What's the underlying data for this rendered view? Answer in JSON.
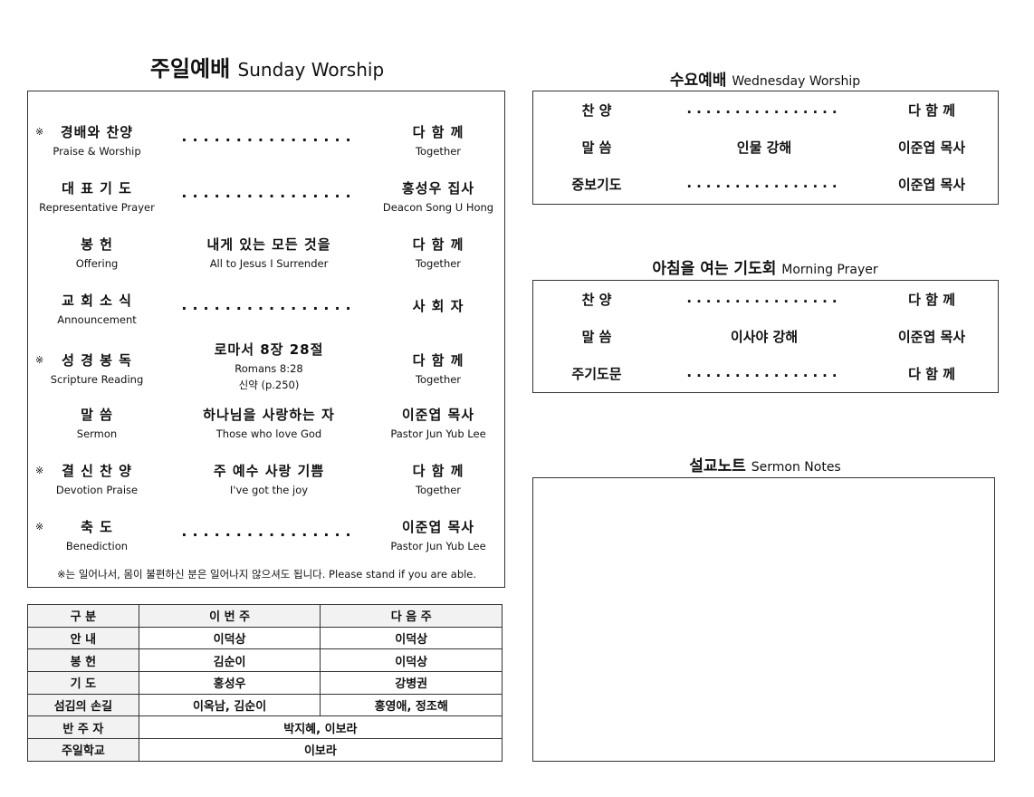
{
  "sunday": {
    "title_ko": "주일예배",
    "title_en": "Sunday Worship",
    "items": [
      {
        "star": true,
        "ko": "경배와 찬양",
        "en": "Praise & Worship",
        "mid_ko": "................",
        "mid_en": "",
        "mid_extra": "",
        "ko_r": "다 함 께",
        "en_r": "Together"
      },
      {
        "star": false,
        "ko": "대 표 기 도",
        "en": "Representative Prayer",
        "mid_ko": "................",
        "mid_en": "",
        "mid_extra": "",
        "ko_r": "홍성우 집사",
        "en_r": "Deacon Song U Hong"
      },
      {
        "star": false,
        "ko": "봉   헌",
        "en": "Offering",
        "mid_ko": "내게 있는 모든 것을",
        "mid_en": "All to Jesus I Surrender",
        "mid_extra": "",
        "ko_r": "다 함 께",
        "en_r": "Together"
      },
      {
        "star": false,
        "ko": "교 회 소 식",
        "en": "Announcement",
        "mid_ko": "................",
        "mid_en": "",
        "mid_extra": "",
        "ko_r": "사 회 자",
        "en_r": ""
      },
      {
        "star": true,
        "ko": "성 경 봉 독",
        "en": "Scripture Reading",
        "mid_ko": "로마서 8장 28절",
        "mid_en": "Romans 8:28",
        "mid_extra": "신약 (p.250)",
        "ko_r": "다 함 께",
        "en_r": "Together"
      },
      {
        "star": false,
        "ko": "말   씀",
        "en": "Sermon",
        "mid_ko": "하나님을 사랑하는 자",
        "mid_en": "Those who love God",
        "mid_extra": "",
        "ko_r": "이준엽 목사",
        "en_r": "Pastor Jun Yub Lee"
      },
      {
        "star": true,
        "ko": "결 신 찬 양",
        "en": "Devotion Praise",
        "mid_ko": "주 예수 사랑 기쁨",
        "mid_en": "I've got the joy",
        "mid_extra": "",
        "ko_r": "다 함 께",
        "en_r": "Together"
      },
      {
        "star": true,
        "ko": "축   도",
        "en": "Benediction",
        "mid_ko": "................",
        "mid_en": "",
        "mid_extra": "",
        "ko_r": "이준엽 목사",
        "en_r": "Pastor Jun Yub Lee"
      }
    ],
    "star_symbol": "※",
    "note": "※는 일어나서, 몸이 불편하신 분은 일어나지 않으셔도 됩니다. Please stand if you are able."
  },
  "duty_table": {
    "headers": [
      "구   분",
      "이 번 주",
      "다 음 주"
    ],
    "rows": [
      [
        "안    내",
        "이덕상",
        "이덕상"
      ],
      [
        "봉    헌",
        "김순이",
        "이덕상"
      ],
      [
        "기    도",
        "홍성우",
        "강병권"
      ],
      [
        "섬김의 손길",
        "이옥남, 김순이",
        "홍영애, 정조해"
      ]
    ],
    "merged_rows": [
      [
        "반 주 자",
        "박지혜, 이보라"
      ],
      [
        "주일학교",
        "이보라"
      ]
    ]
  },
  "wednesday": {
    "title_ko": "수요예배",
    "title_en": "Wednesday Worship",
    "rows": [
      [
        "찬    양",
        "................",
        "다  함  께"
      ],
      [
        "말    씀",
        "인물 강해",
        "이준엽 목사"
      ],
      [
        "중보기도",
        "................",
        "이준엽 목사"
      ]
    ]
  },
  "morning": {
    "title_ko": "아침을 여는 기도회",
    "title_en": "Morning Prayer",
    "rows": [
      [
        "찬    양",
        "................",
        "다  함  께"
      ],
      [
        "말    씀",
        "이사야 강해",
        "이준엽 목사"
      ],
      [
        "주기도문",
        "................",
        "다  함  께"
      ]
    ]
  },
  "notes": {
    "title_ko": "설교노트",
    "title_en": "Sermon Notes"
  }
}
